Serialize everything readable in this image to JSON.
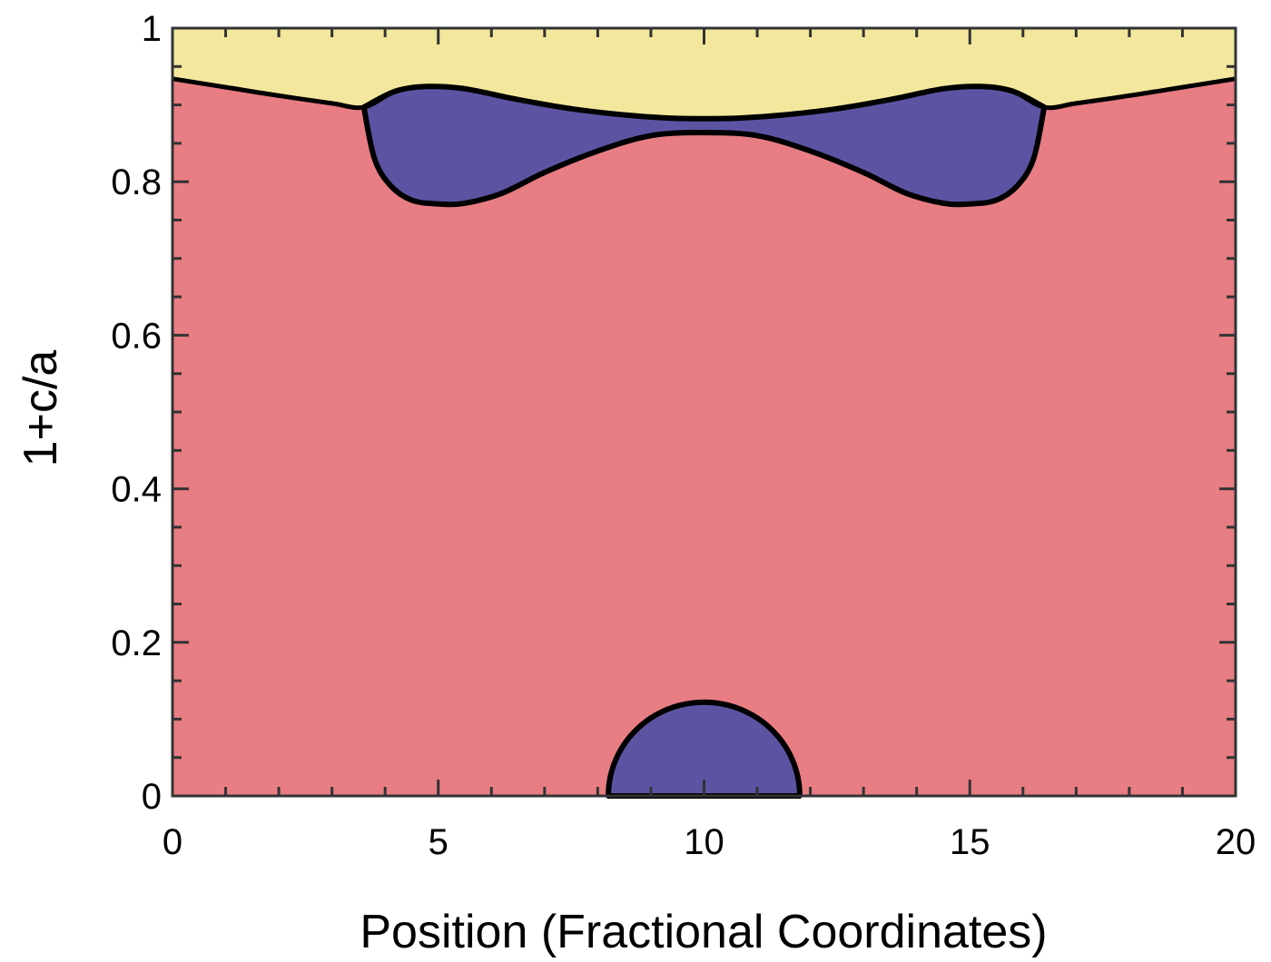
{
  "chart_data": {
    "type": "area",
    "title": "",
    "xlabel": "Position  (Fractional  Coordinates)",
    "ylabel": "1+c/a",
    "xlim": [
      0,
      20
    ],
    "ylim": [
      0,
      1
    ],
    "x_major_ticks": [
      0,
      5,
      10,
      15,
      20
    ],
    "x_tick_labels": [
      "0",
      "5",
      "10",
      "15",
      "20"
    ],
    "y_major_ticks": [
      0,
      0.2,
      0.4,
      0.6,
      0.8,
      1
    ],
    "y_tick_labels": [
      "0",
      "0.2",
      "0.4",
      "0.6",
      "0.8",
      "1"
    ],
    "grid": false,
    "colors": {
      "background_region": "#e87d84",
      "upper_region": "#f2e79c",
      "pocket_region": "#5c54a3",
      "boundary": "#000000",
      "axis": "#333333"
    },
    "regions": [
      {
        "name": "upper_phase_boundary",
        "description_key": "boundary between lower (red) and upper (yellow) regions",
        "x": [
          0,
          1,
          2,
          3,
          3.6,
          4.2,
          4.8,
          5.5,
          6.5,
          7.5,
          8.5,
          9.3,
          10,
          10.7,
          11.5,
          12.5,
          13.5,
          14.5,
          15.2,
          15.8,
          16.4,
          17,
          18,
          19,
          20
        ],
        "y": [
          0.934,
          0.923,
          0.912,
          0.902,
          0.897,
          0.918,
          0.924,
          0.921,
          0.907,
          0.895,
          0.887,
          0.883,
          0.882,
          0.883,
          0.887,
          0.895,
          0.907,
          0.921,
          0.924,
          0.918,
          0.897,
          0.902,
          0.912,
          0.923,
          0.934
        ]
      },
      {
        "name": "upper_pocket_lower_edge",
        "x": [
          3.6,
          3.8,
          4.1,
          4.5,
          5.0,
          5.5,
          6.2,
          7.0,
          8.0,
          9.0,
          10,
          11.0,
          12.0,
          13.0,
          13.8,
          14.5,
          15.0,
          15.5,
          15.9,
          16.2,
          16.4
        ],
        "y": [
          0.897,
          0.83,
          0.795,
          0.776,
          0.771,
          0.772,
          0.785,
          0.812,
          0.84,
          0.86,
          0.864,
          0.86,
          0.84,
          0.812,
          0.785,
          0.772,
          0.771,
          0.776,
          0.795,
          0.83,
          0.897
        ]
      },
      {
        "name": "bottom_pocket",
        "x_range": [
          8.2,
          11.8
        ],
        "center_x": 10,
        "peak_y": 0.122
      }
    ]
  }
}
